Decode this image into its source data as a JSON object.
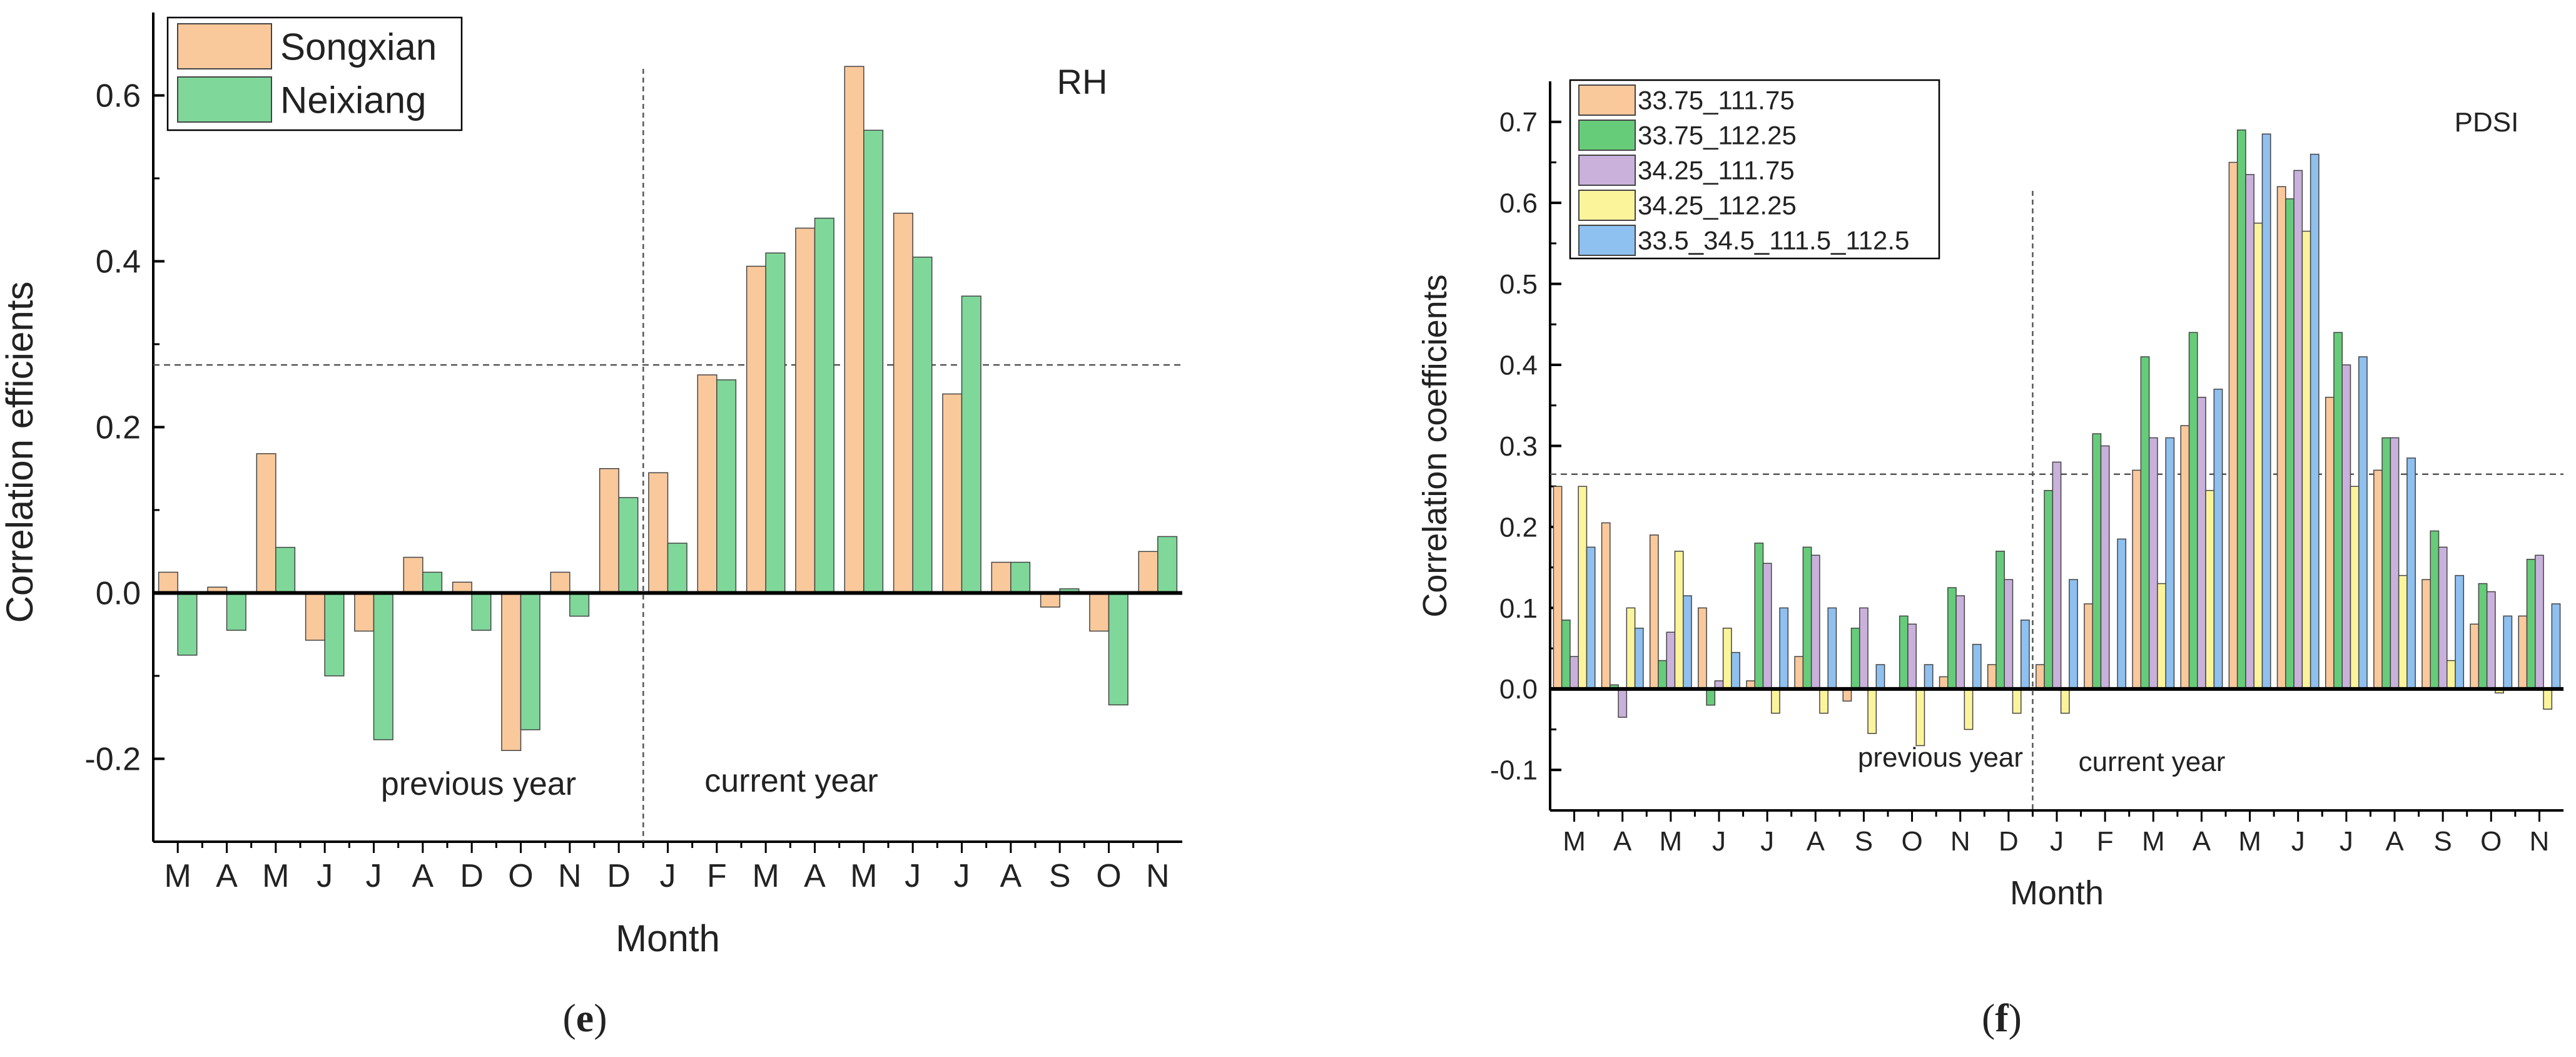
{
  "chart_data": [
    {
      "type": "bar",
      "panel_label": "e",
      "annotation": "RH",
      "xlabel": "Month",
      "ylabel": "Correlation efficients",
      "ylim": [
        -0.3,
        0.7
      ],
      "yticks": [
        -0.2,
        0.0,
        0.2,
        0.4,
        0.6
      ],
      "ytick_labels": [
        "-0.2",
        "0.0",
        "0.2",
        "0.4",
        "0.6"
      ],
      "threshold": 0.275,
      "divider_after_index": 9,
      "region_labels": [
        "previous year",
        "current year"
      ],
      "categories": [
        "M",
        "A",
        "M",
        "J",
        "J",
        "A",
        "D",
        "O",
        "N",
        "D",
        "J",
        "F",
        "M",
        "A",
        "M",
        "J",
        "J",
        "A",
        "S",
        "O",
        "N"
      ],
      "series": [
        {
          "name": "Songxian",
          "color": "#f9c89b",
          "values": [
            0.025,
            0.007,
            0.168,
            -0.057,
            -0.046,
            0.043,
            0.013,
            -0.19,
            0.025,
            0.15,
            0.145,
            0.263,
            0.394,
            0.44,
            0.635,
            0.458,
            0.24,
            0.037,
            -0.017,
            -0.046,
            0.05
          ]
        },
        {
          "name": "Neixiang",
          "color": "#7fd89a",
          "values": [
            -0.075,
            -0.045,
            0.055,
            -0.1,
            -0.177,
            0.025,
            -0.045,
            -0.165,
            -0.028,
            0.115,
            0.06,
            0.257,
            0.41,
            0.452,
            0.558,
            0.405,
            0.358,
            0.037,
            0.005,
            -0.135,
            0.068
          ]
        }
      ]
    },
    {
      "type": "bar",
      "panel_label": "f",
      "annotation": "PDSI",
      "xlabel": "Month",
      "ylabel": "Correlation coefficients",
      "ylim": [
        -0.15,
        0.75
      ],
      "yticks": [
        -0.1,
        0.0,
        0.1,
        0.2,
        0.3,
        0.4,
        0.5,
        0.6,
        0.7
      ],
      "ytick_labels": [
        "-0.1",
        "0.0",
        "0.1",
        "0.2",
        "0.3",
        "0.4",
        "0.5",
        "0.6",
        "0.7"
      ],
      "threshold": 0.265,
      "divider_after_index": 9,
      "region_labels": [
        "previous year",
        "current year"
      ],
      "categories": [
        "M",
        "A",
        "M",
        "J",
        "J",
        "A",
        "S",
        "O",
        "N",
        "D",
        "J",
        "F",
        "M",
        "A",
        "M",
        "J",
        "J",
        "A",
        "S",
        "O",
        "N"
      ],
      "series": [
        {
          "name": "33.75_111.75",
          "color": "#f9c89b",
          "values": [
            0.25,
            0.205,
            0.19,
            0.1,
            0.01,
            0.04,
            -0.015,
            0.0,
            0.015,
            0.03,
            0.03,
            0.105,
            0.27,
            0.325,
            0.65,
            0.62,
            0.36,
            0.27,
            0.135,
            0.08,
            0.09
          ]
        },
        {
          "name": "33.75_112.25",
          "color": "#66cc7a",
          "values": [
            0.085,
            0.005,
            0.035,
            -0.02,
            0.18,
            0.175,
            0.075,
            0.09,
            0.125,
            0.17,
            0.245,
            0.315,
            0.41,
            0.44,
            0.69,
            0.605,
            0.44,
            0.31,
            0.195,
            0.13,
            0.16
          ]
        },
        {
          "name": "34.25_111.75",
          "color": "#c9b1dc",
          "values": [
            0.04,
            -0.035,
            0.07,
            0.01,
            0.155,
            0.165,
            0.1,
            0.08,
            0.115,
            0.135,
            0.28,
            0.3,
            0.31,
            0.36,
            0.635,
            0.64,
            0.4,
            0.31,
            0.175,
            0.12,
            0.165
          ]
        },
        {
          "name": "34.25_112.25",
          "color": "#fbf49a",
          "values": [
            0.25,
            0.1,
            0.17,
            0.075,
            -0.03,
            -0.03,
            -0.055,
            -0.07,
            -0.05,
            -0.03,
            -0.03,
            0.0,
            0.13,
            0.245,
            0.575,
            0.565,
            0.25,
            0.14,
            0.035,
            -0.005,
            -0.025
          ]
        },
        {
          "name": "33.5_34.5_111.5_112.5",
          "color": "#8ec0f0",
          "values": [
            0.175,
            0.075,
            0.115,
            0.045,
            0.1,
            0.1,
            0.03,
            0.03,
            0.055,
            0.085,
            0.135,
            0.185,
            0.31,
            0.37,
            0.685,
            0.66,
            0.41,
            0.285,
            0.14,
            0.09,
            0.105
          ]
        }
      ]
    }
  ]
}
